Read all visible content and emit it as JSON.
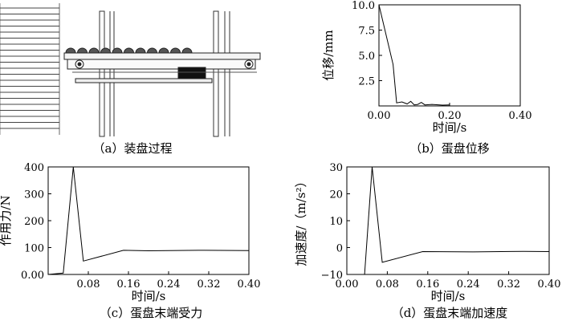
{
  "panels": {
    "a": {
      "caption": "（a）装盘过程"
    },
    "b": {
      "caption": "（b）蛋盘位移"
    },
    "c": {
      "caption": "（c）蛋盘末端受力"
    },
    "d": {
      "caption": "（d）蛋盘末端加速度"
    }
  },
  "chart_data": [
    {
      "id": "b",
      "type": "line",
      "xlabel": "时间/s",
      "ylabel": "位移/mm",
      "xlim": [
        0,
        0.4
      ],
      "ylim": [
        0,
        10
      ],
      "xticks": [
        0,
        0.2,
        0.4
      ],
      "xtick_labels": [
        "0.00",
        "0.20",
        "0.40"
      ],
      "yticks": [
        2.5,
        5,
        7.5,
        10
      ],
      "ytick_labels": [
        "2.5",
        "5.0",
        "7.5",
        "10.0"
      ],
      "x": [
        0,
        0.04,
        0.05,
        0.065,
        0.08,
        0.09,
        0.1,
        0.11,
        0.12,
        0.13,
        0.15,
        0.18,
        0.2
      ],
      "y": [
        10,
        4.1,
        0.3,
        0.4,
        0.2,
        0.45,
        0.1,
        0.15,
        0.35,
        0.1,
        0.15,
        0.08,
        0.1
      ],
      "grid": false
    },
    {
      "id": "c",
      "type": "line",
      "xlabel": "时间/s",
      "ylabel": "作用力/N",
      "xlim": [
        0,
        0.4
      ],
      "ylim": [
        0,
        400
      ],
      "xticks": [
        0.08,
        0.16,
        0.24,
        0.32,
        0.4
      ],
      "xtick_labels": [
        "0.08",
        "0.16",
        "0.24",
        "0.32",
        "0.40"
      ],
      "yticks": [
        0,
        100,
        200,
        300,
        400
      ],
      "ytick_labels": [
        "0.00",
        "100",
        "200",
        "300",
        "400"
      ],
      "x": [
        0,
        0.03,
        0.05,
        0.07,
        0.15,
        0.2,
        0.3,
        0.4
      ],
      "y": [
        0,
        5,
        400,
        50,
        90,
        88,
        90,
        89
      ],
      "grid": false
    },
    {
      "id": "d",
      "type": "line",
      "xlabel": "时间/s",
      "ylabel": "加速度/（m/s²）",
      "xlim": [
        0,
        0.4
      ],
      "ylim": [
        -10,
        30
      ],
      "xticks": [
        0,
        0.08,
        0.16,
        0.24,
        0.32,
        0.4
      ],
      "xtick_labels": [
        "0.00",
        "0.08",
        "0.16",
        "0.24",
        "0.32",
        "0.40"
      ],
      "yticks": [
        -10,
        0,
        10,
        20,
        30
      ],
      "ytick_labels": [
        "−10",
        "0",
        "10",
        "20",
        "30"
      ],
      "x": [
        0,
        0.035,
        0.05,
        0.07,
        0.15,
        0.25,
        0.35,
        0.4
      ],
      "y": [
        -10,
        -10,
        30,
        -5.5,
        -1.5,
        -1.6,
        -1.4,
        -1.5
      ],
      "grid": false
    }
  ]
}
